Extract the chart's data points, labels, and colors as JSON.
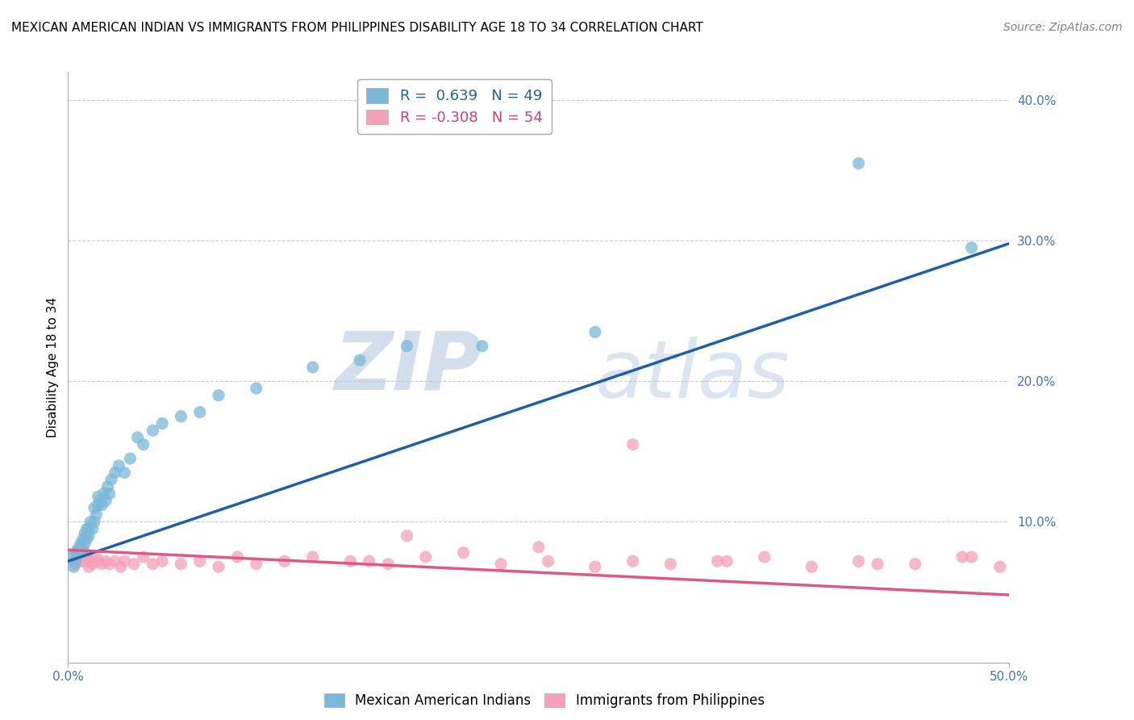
{
  "title": "MEXICAN AMERICAN INDIAN VS IMMIGRANTS FROM PHILIPPINES DISABILITY AGE 18 TO 34 CORRELATION CHART",
  "source": "Source: ZipAtlas.com",
  "ylabel": "Disability Age 18 to 34",
  "xlim": [
    0.0,
    0.5
  ],
  "ylim": [
    0.0,
    0.42
  ],
  "xticks": [
    0.0,
    0.5
  ],
  "xticklabels": [
    "0.0%",
    "50.0%"
  ],
  "yticks_right": [
    0.1,
    0.2,
    0.3,
    0.4
  ],
  "ytick_right_labels": [
    "10.0%",
    "20.0%",
    "30.0%",
    "40.0%"
  ],
  "legend1_r": "0.639",
  "legend1_n": "49",
  "legend2_r": "-0.308",
  "legend2_n": "54",
  "blue_color": "#7ab8d9",
  "pink_color": "#f4a0b8",
  "blue_line_color": "#1f5fa6",
  "pink_line_color": "#e05882",
  "watermark_zip": "ZIP",
  "watermark_atlas": "atlas",
  "blue_scatter_x": [
    0.002,
    0.003,
    0.004,
    0.005,
    0.005,
    0.006,
    0.007,
    0.007,
    0.008,
    0.008,
    0.009,
    0.009,
    0.01,
    0.01,
    0.011,
    0.011,
    0.012,
    0.013,
    0.014,
    0.014,
    0.015,
    0.016,
    0.016,
    0.017,
    0.018,
    0.019,
    0.02,
    0.021,
    0.022,
    0.023,
    0.025,
    0.027,
    0.03,
    0.033,
    0.037,
    0.04,
    0.045,
    0.05,
    0.06,
    0.07,
    0.08,
    0.1,
    0.13,
    0.155,
    0.18,
    0.22,
    0.28,
    0.42,
    0.48
  ],
  "blue_scatter_y": [
    0.075,
    0.068,
    0.072,
    0.08,
    0.078,
    0.082,
    0.078,
    0.085,
    0.08,
    0.088,
    0.085,
    0.092,
    0.088,
    0.095,
    0.09,
    0.095,
    0.1,
    0.095,
    0.1,
    0.11,
    0.105,
    0.112,
    0.118,
    0.115,
    0.112,
    0.12,
    0.115,
    0.125,
    0.12,
    0.13,
    0.135,
    0.14,
    0.135,
    0.145,
    0.16,
    0.155,
    0.165,
    0.17,
    0.175,
    0.178,
    0.19,
    0.195,
    0.21,
    0.215,
    0.225,
    0.225,
    0.235,
    0.355,
    0.295
  ],
  "pink_scatter_x": [
    0.002,
    0.003,
    0.004,
    0.005,
    0.006,
    0.007,
    0.008,
    0.009,
    0.01,
    0.011,
    0.012,
    0.013,
    0.015,
    0.016,
    0.018,
    0.02,
    0.022,
    0.025,
    0.028,
    0.03,
    0.035,
    0.04,
    0.045,
    0.05,
    0.06,
    0.07,
    0.08,
    0.09,
    0.1,
    0.115,
    0.13,
    0.15,
    0.17,
    0.19,
    0.21,
    0.23,
    0.255,
    0.28,
    0.3,
    0.32,
    0.345,
    0.37,
    0.395,
    0.42,
    0.45,
    0.475,
    0.495,
    0.3,
    0.18,
    0.25,
    0.16,
    0.35,
    0.43,
    0.48
  ],
  "pink_scatter_y": [
    0.075,
    0.072,
    0.07,
    0.078,
    0.072,
    0.075,
    0.072,
    0.078,
    0.075,
    0.068,
    0.072,
    0.07,
    0.075,
    0.072,
    0.07,
    0.072,
    0.07,
    0.072,
    0.068,
    0.072,
    0.07,
    0.075,
    0.07,
    0.072,
    0.07,
    0.072,
    0.068,
    0.075,
    0.07,
    0.072,
    0.075,
    0.072,
    0.07,
    0.075,
    0.078,
    0.07,
    0.072,
    0.068,
    0.072,
    0.07,
    0.072,
    0.075,
    0.068,
    0.072,
    0.07,
    0.075,
    0.068,
    0.155,
    0.09,
    0.082,
    0.072,
    0.072,
    0.07,
    0.075
  ],
  "blue_trend_x": [
    0.0,
    0.5
  ],
  "blue_trend_y": [
    0.072,
    0.298
  ],
  "pink_trend_x": [
    0.0,
    0.5
  ],
  "pink_trend_y": [
    0.08,
    0.048
  ],
  "grid_color": "#cccccc",
  "tick_color": "#4472c4",
  "title_fontsize": 11,
  "source_fontsize": 10,
  "axis_fontsize": 11,
  "legend_fontsize": 13
}
